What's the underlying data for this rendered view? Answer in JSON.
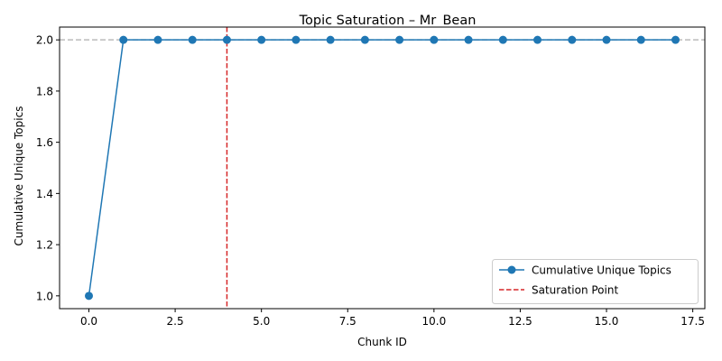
{
  "chart_data": {
    "type": "line",
    "title": "Topic Saturation – Mr_Bean",
    "xlabel": "Chunk ID",
    "ylabel": "Cumulative Unique Topics",
    "xlim": [
      -0.85,
      17.85
    ],
    "ylim": [
      0.95,
      2.05
    ],
    "xticks": [
      0.0,
      2.5,
      5.0,
      7.5,
      10.0,
      12.5,
      15.0,
      17.5
    ],
    "xtick_labels": [
      "0.0",
      "2.5",
      "5.0",
      "7.5",
      "10.0",
      "12.5",
      "15.0",
      "17.5"
    ],
    "yticks": [
      1.0,
      1.2,
      1.4,
      1.6,
      1.8,
      2.0
    ],
    "ytick_labels": [
      "1.0",
      "1.2",
      "1.4",
      "1.6",
      "1.8",
      "2.0"
    ],
    "grid": false,
    "legend_position": "bottom-right",
    "series": [
      {
        "name": "Cumulative Unique Topics",
        "color": "#1f77b4",
        "marker": "circle",
        "x": [
          0,
          1,
          2,
          3,
          4,
          5,
          6,
          7,
          8,
          9,
          10,
          11,
          12,
          13,
          14,
          15,
          16,
          17
        ],
        "y": [
          1,
          2,
          2,
          2,
          2,
          2,
          2,
          2,
          2,
          2,
          2,
          2,
          2,
          2,
          2,
          2,
          2,
          2
        ]
      }
    ],
    "saturation_line": {
      "name": "Saturation Point",
      "x": 4,
      "color": "#d62728",
      "style": "dashed"
    },
    "reference_line": {
      "y": 2.0,
      "color": "#bbbbbb",
      "style": "dashed"
    }
  }
}
